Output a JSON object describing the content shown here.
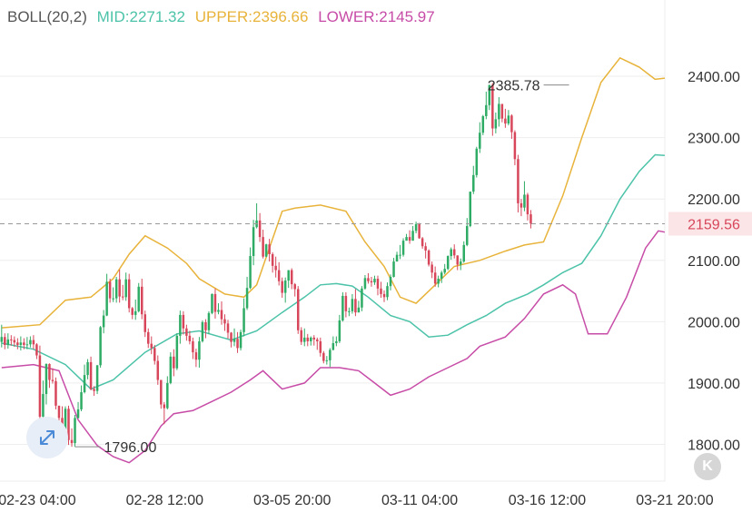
{
  "legend": {
    "indicator": "BOLL(20,2)",
    "mid": "MID:2271.32",
    "upper": "UPPER:2396.66",
    "lower": "LOWER:2145.97"
  },
  "colors": {
    "up": "#2eab64",
    "down": "#d7465a",
    "mid": "#4cc3a9",
    "upper": "#e8b33a",
    "lower": "#c74ca7",
    "grid": "#eeeeee",
    "last_price_bg": "#fbe5e7",
    "last_price_text": "#d7465a"
  },
  "icons": {
    "expand": "expand-arrows-icon",
    "collapse": "collapse-k-icon"
  },
  "collapse_label": "K",
  "chart_data": {
    "type": "candlestick",
    "ylim": [
      1740,
      2480
    ],
    "yticks": [
      {
        "value": 2400,
        "label": "2400.00"
      },
      {
        "value": 2300,
        "label": "2300.00"
      },
      {
        "value": 2200,
        "label": "2200.00"
      },
      {
        "value": 2100,
        "label": "2100.00"
      },
      {
        "value": 2000,
        "label": "2000.00"
      },
      {
        "value": 1900,
        "label": "1900.00"
      },
      {
        "value": 1800,
        "label": "1800.00"
      }
    ],
    "xticks": [
      {
        "label": "02-23 04:00",
        "index": 10
      },
      {
        "label": "02-28 12:00",
        "index": 50
      },
      {
        "label": "03-05 20:00",
        "index": 90
      },
      {
        "label": "03-11 04:00",
        "index": 130
      },
      {
        "label": "03-16 12:00",
        "index": 170
      },
      {
        "label": "03-21 20:00",
        "index": 210
      }
    ],
    "last_price": {
      "value": 2159.56,
      "label": "2159.56"
    },
    "max_annotation": {
      "value": 2385.78,
      "label": "2385.78",
      "index": 178
    },
    "min_annotation": {
      "value": 1796.0,
      "label": "1796.00",
      "index": 23
    },
    "bands": {
      "mid": [
        [
          0,
          1965
        ],
        [
          10,
          1955
        ],
        [
          20,
          1930
        ],
        [
          28,
          1890
        ],
        [
          35,
          1905
        ],
        [
          45,
          1950
        ],
        [
          55,
          1980
        ],
        [
          62,
          1985
        ],
        [
          72,
          1970
        ],
        [
          80,
          1985
        ],
        [
          88,
          2015
        ],
        [
          95,
          2040
        ],
        [
          100,
          2060
        ],
        [
          105,
          2062
        ],
        [
          110,
          2058
        ],
        [
          115,
          2040
        ],
        [
          122,
          2010
        ],
        [
          128,
          2000
        ],
        [
          134,
          1975
        ],
        [
          140,
          1978
        ],
        [
          146,
          1995
        ],
        [
          152,
          2010
        ],
        [
          158,
          2030
        ],
        [
          165,
          2045
        ],
        [
          170,
          2060
        ],
        [
          176,
          2080
        ],
        [
          182,
          2095
        ],
        [
          188,
          2140
        ],
        [
          194,
          2200
        ],
        [
          200,
          2245
        ],
        [
          205,
          2272
        ],
        [
          208,
          2271
        ]
      ],
      "upper": [
        [
          0,
          1990
        ],
        [
          12,
          1995
        ],
        [
          20,
          2035
        ],
        [
          28,
          2040
        ],
        [
          35,
          2070
        ],
        [
          40,
          2110
        ],
        [
          45,
          2140
        ],
        [
          52,
          2120
        ],
        [
          58,
          2095
        ],
        [
          62,
          2070
        ],
        [
          70,
          2045
        ],
        [
          76,
          2040
        ],
        [
          80,
          2060
        ],
        [
          84,
          2120
        ],
        [
          88,
          2180
        ],
        [
          92,
          2185
        ],
        [
          100,
          2190
        ],
        [
          108,
          2180
        ],
        [
          114,
          2130
        ],
        [
          120,
          2090
        ],
        [
          125,
          2040
        ],
        [
          130,
          2030
        ],
        [
          136,
          2060
        ],
        [
          142,
          2090
        ],
        [
          150,
          2100
        ],
        [
          158,
          2115
        ],
        [
          164,
          2125
        ],
        [
          170,
          2130
        ],
        [
          176,
          2205
        ],
        [
          182,
          2300
        ],
        [
          188,
          2390
        ],
        [
          194,
          2430
        ],
        [
          200,
          2415
        ],
        [
          205,
          2395
        ],
        [
          208,
          2397
        ]
      ],
      "lower": [
        [
          0,
          1925
        ],
        [
          10,
          1930
        ],
        [
          18,
          1920
        ],
        [
          24,
          1840
        ],
        [
          30,
          1798
        ],
        [
          35,
          1780
        ],
        [
          40,
          1770
        ],
        [
          45,
          1790
        ],
        [
          50,
          1830
        ],
        [
          54,
          1850
        ],
        [
          60,
          1855
        ],
        [
          66,
          1870
        ],
        [
          72,
          1885
        ],
        [
          78,
          1905
        ],
        [
          82,
          1920
        ],
        [
          88,
          1890
        ],
        [
          95,
          1900
        ],
        [
          100,
          1925
        ],
        [
          106,
          1925
        ],
        [
          112,
          1920
        ],
        [
          117,
          1900
        ],
        [
          122,
          1880
        ],
        [
          128,
          1890
        ],
        [
          134,
          1910
        ],
        [
          140,
          1925
        ],
        [
          146,
          1940
        ],
        [
          150,
          1960
        ],
        [
          158,
          1975
        ],
        [
          164,
          2005
        ],
        [
          170,
          2045
        ],
        [
          176,
          2060
        ],
        [
          180,
          2045
        ],
        [
          184,
          1980
        ],
        [
          190,
          1980
        ],
        [
          196,
          2040
        ],
        [
          202,
          2120
        ],
        [
          206,
          2148
        ],
        [
          208,
          2146
        ]
      ]
    },
    "candles": [
      [
        1967,
        1975,
        1995,
        1958
      ],
      [
        1975,
        1962,
        1981,
        1955
      ],
      [
        1962,
        1971,
        1981,
        1956
      ],
      [
        1971,
        1970,
        1978,
        1961
      ],
      [
        1970,
        1966,
        1976,
        1959
      ],
      [
        1966,
        1962,
        1973,
        1955
      ],
      [
        1962,
        1966,
        1976,
        1953
      ],
      [
        1966,
        1962,
        1973,
        1955
      ],
      [
        1962,
        1963,
        1975,
        1955
      ],
      [
        1963,
        1970,
        1976,
        1958
      ],
      [
        1970,
        1963,
        1978,
        1955
      ],
      [
        1963,
        1945,
        1965,
        1939
      ],
      [
        1945,
        1845,
        1961,
        1832
      ],
      [
        1845,
        1882,
        1904,
        1836
      ],
      [
        1882,
        1931,
        1932,
        1865
      ],
      [
        1931,
        1905,
        1932,
        1892
      ],
      [
        1905,
        1903,
        1924,
        1899
      ],
      [
        1903,
        1863,
        1909,
        1857
      ],
      [
        1863,
        1843,
        1863,
        1836
      ],
      [
        1843,
        1824,
        1862,
        1823
      ],
      [
        1824,
        1858,
        1862,
        1811
      ],
      [
        1858,
        1807,
        1863,
        1799
      ],
      [
        1807,
        1802,
        1826,
        1796
      ],
      [
        1802,
        1843,
        1848,
        1796
      ],
      [
        1843,
        1857,
        1869,
        1842
      ],
      [
        1857,
        1885,
        1896,
        1854
      ],
      [
        1885,
        1913,
        1930,
        1883
      ],
      [
        1913,
        1934,
        1939,
        1906
      ],
      [
        1934,
        1890,
        1943,
        1888
      ],
      [
        1890,
        1887,
        1895,
        1879
      ],
      [
        1887,
        1929,
        1929,
        1882
      ],
      [
        1929,
        1991,
        1993,
        1925
      ],
      [
        1991,
        2010,
        2019,
        1981
      ],
      [
        2010,
        2065,
        2078,
        2009
      ],
      [
        2065,
        2038,
        2070,
        2031
      ],
      [
        2038,
        2038,
        2056,
        2032
      ],
      [
        2038,
        2069,
        2073,
        2031
      ],
      [
        2069,
        2041,
        2085,
        2031
      ],
      [
        2041,
        2040,
        2060,
        2035
      ],
      [
        2040,
        2069,
        2080,
        2034
      ],
      [
        2069,
        2022,
        2078,
        2015
      ],
      [
        2022,
        2011,
        2024,
        2004
      ],
      [
        2011,
        2017,
        2036,
        2003
      ],
      [
        2017,
        2057,
        2063,
        2015
      ],
      [
        2057,
        2012,
        2070,
        2004
      ],
      [
        2012,
        1983,
        2018,
        1975
      ],
      [
        1983,
        1964,
        1989,
        1957
      ],
      [
        1964,
        1957,
        1976,
        1947
      ],
      [
        1957,
        1936,
        1962,
        1930
      ],
      [
        1936,
        1905,
        1945,
        1897
      ],
      [
        1905,
        1865,
        1905,
        1858
      ],
      [
        1865,
        1859,
        1869,
        1833
      ],
      [
        1859,
        1900,
        1911,
        1857
      ],
      [
        1900,
        1943,
        1950,
        1898
      ],
      [
        1943,
        1924,
        1955,
        1911
      ],
      [
        1924,
        1977,
        1981,
        1921
      ],
      [
        1977,
        2011,
        2018,
        1964
      ],
      [
        2011,
        1989,
        2017,
        1979
      ],
      [
        1989,
        1977,
        1995,
        1969
      ],
      [
        1977,
        1968,
        1985,
        1963
      ],
      [
        1968,
        1950,
        1974,
        1939
      ],
      [
        1950,
        1938,
        1956,
        1926
      ],
      [
        1938,
        1968,
        1975,
        1925
      ],
      [
        1968,
        1999,
        2002,
        1966
      ],
      [
        1999,
        1986,
        2004,
        1973
      ],
      [
        1986,
        2014,
        2017,
        1980
      ],
      [
        2014,
        2045,
        2046,
        2012
      ],
      [
        2045,
        2016,
        2054,
        2005
      ],
      [
        2016,
        2019,
        2030,
        2012
      ],
      [
        2019,
        2004,
        2033,
        1995
      ],
      [
        2004,
        1997,
        2012,
        1985
      ],
      [
        1997,
        1982,
        2003,
        1972
      ],
      [
        1982,
        1967,
        1983,
        1958
      ],
      [
        1967,
        1972,
        1989,
        1960
      ],
      [
        1972,
        1957,
        1983,
        1949
      ],
      [
        1957,
        1983,
        1987,
        1953
      ],
      [
        1983,
        2022,
        2038,
        1976
      ],
      [
        2022,
        2055,
        2073,
        2019
      ],
      [
        2055,
        2107,
        2121,
        2053
      ],
      [
        2107,
        2154,
        2166,
        2092
      ],
      [
        2154,
        2165,
        2193,
        2152
      ],
      [
        2165,
        2138,
        2177,
        2130
      ],
      [
        2138,
        2106,
        2150,
        2103
      ],
      [
        2106,
        2126,
        2127,
        2105
      ],
      [
        2126,
        2110,
        2135,
        2098
      ],
      [
        2110,
        2091,
        2113,
        2080
      ],
      [
        2091,
        2084,
        2106,
        2072
      ],
      [
        2084,
        2066,
        2097,
        2059
      ],
      [
        2066,
        2047,
        2072,
        2039
      ],
      [
        2047,
        2067,
        2072,
        2031
      ],
      [
        2067,
        2084,
        2084,
        2055
      ],
      [
        2084,
        2061,
        2087,
        2053
      ],
      [
        2061,
        2053,
        2063,
        2041
      ],
      [
        2053,
        1986,
        2058,
        1980
      ],
      [
        1986,
        1967,
        1991,
        1962
      ],
      [
        1967,
        1974,
        1989,
        1960
      ],
      [
        1974,
        1968,
        1980,
        1960
      ],
      [
        1968,
        1974,
        1976,
        1961
      ],
      [
        1974,
        1971,
        1978,
        1961
      ],
      [
        1971,
        1968,
        1974,
        1954
      ],
      [
        1968,
        1949,
        1974,
        1943
      ],
      [
        1949,
        1936,
        1952,
        1932
      ],
      [
        1936,
        1937,
        1944,
        1930
      ],
      [
        1937,
        1954,
        1957,
        1926
      ],
      [
        1954,
        1965,
        1976,
        1953
      ],
      [
        1965,
        1968,
        1976,
        1960
      ],
      [
        1968,
        2002,
        2011,
        1965
      ],
      [
        2002,
        2042,
        2048,
        2000
      ],
      [
        2042,
        2017,
        2048,
        2007
      ],
      [
        2017,
        2017,
        2023,
        2009
      ],
      [
        2017,
        2037,
        2045,
        2013
      ],
      [
        2037,
        2015,
        2053,
        2009
      ],
      [
        2015,
        2023,
        2034,
        2015
      ],
      [
        2023,
        2054,
        2058,
        2017
      ],
      [
        2054,
        2071,
        2076,
        2052
      ],
      [
        2071,
        2066,
        2079,
        2062
      ],
      [
        2066,
        2064,
        2073,
        2057
      ],
      [
        2064,
        2070,
        2075,
        2060
      ],
      [
        2070,
        2054,
        2075,
        2043
      ],
      [
        2054,
        2045,
        2065,
        2039
      ],
      [
        2045,
        2040,
        2051,
        2032
      ],
      [
        2040,
        2058,
        2064,
        2035
      ],
      [
        2058,
        2073,
        2077,
        2051
      ],
      [
        2073,
        2098,
        2104,
        2072
      ],
      [
        2098,
        2109,
        2114,
        2098
      ],
      [
        2109,
        2109,
        2125,
        2102
      ],
      [
        2109,
        2132,
        2136,
        2106
      ],
      [
        2132,
        2138,
        2143,
        2132
      ],
      [
        2138,
        2132,
        2149,
        2127
      ],
      [
        2132,
        2148,
        2156,
        2132
      ],
      [
        2148,
        2159,
        2163,
        2144
      ],
      [
        2159,
        2136,
        2161,
        2135
      ],
      [
        2136,
        2123,
        2138,
        2119
      ],
      [
        2123,
        2116,
        2129,
        2103
      ],
      [
        2116,
        2093,
        2118,
        2090
      ],
      [
        2093,
        2080,
        2098,
        2071
      ],
      [
        2080,
        2062,
        2090,
        2057
      ],
      [
        2062,
        2070,
        2075,
        2056
      ],
      [
        2070,
        2080,
        2083,
        2063
      ],
      [
        2080,
        2086,
        2094,
        2077
      ],
      [
        2086,
        2107,
        2108,
        2084
      ],
      [
        2107,
        2118,
        2121,
        2101
      ],
      [
        2118,
        2108,
        2126,
        2103
      ],
      [
        2108,
        2093,
        2108,
        2084
      ],
      [
        2093,
        2098,
        2103,
        2084
      ],
      [
        2098,
        2125,
        2131,
        2096
      ],
      [
        2125,
        2156,
        2169,
        2123
      ],
      [
        2156,
        2212,
        2212,
        2154
      ],
      [
        2212,
        2239,
        2254,
        2208
      ],
      [
        2239,
        2282,
        2285,
        2235
      ],
      [
        2282,
        2308,
        2325,
        2275
      ],
      [
        2308,
        2335,
        2337,
        2304
      ],
      [
        2335,
        2353,
        2375,
        2330
      ],
      [
        2353,
        2386,
        2386,
        2345
      ],
      [
        2386,
        2315,
        2389,
        2303
      ],
      [
        2315,
        2330,
        2341,
        2307
      ],
      [
        2330,
        2355,
        2366,
        2318
      ],
      [
        2355,
        2331,
        2353,
        2325
      ],
      [
        2331,
        2323,
        2347,
        2316
      ],
      [
        2323,
        2336,
        2345,
        2320
      ],
      [
        2336,
        2309,
        2338,
        2298
      ],
      [
        2309,
        2265,
        2312,
        2255
      ],
      [
        2265,
        2193,
        2272,
        2178
      ],
      [
        2193,
        2186,
        2200,
        2172
      ],
      [
        2186,
        2207,
        2229,
        2180
      ],
      [
        2207,
        2175,
        2210,
        2165
      ],
      [
        2175,
        2160,
        2182,
        2152
      ]
    ]
  }
}
